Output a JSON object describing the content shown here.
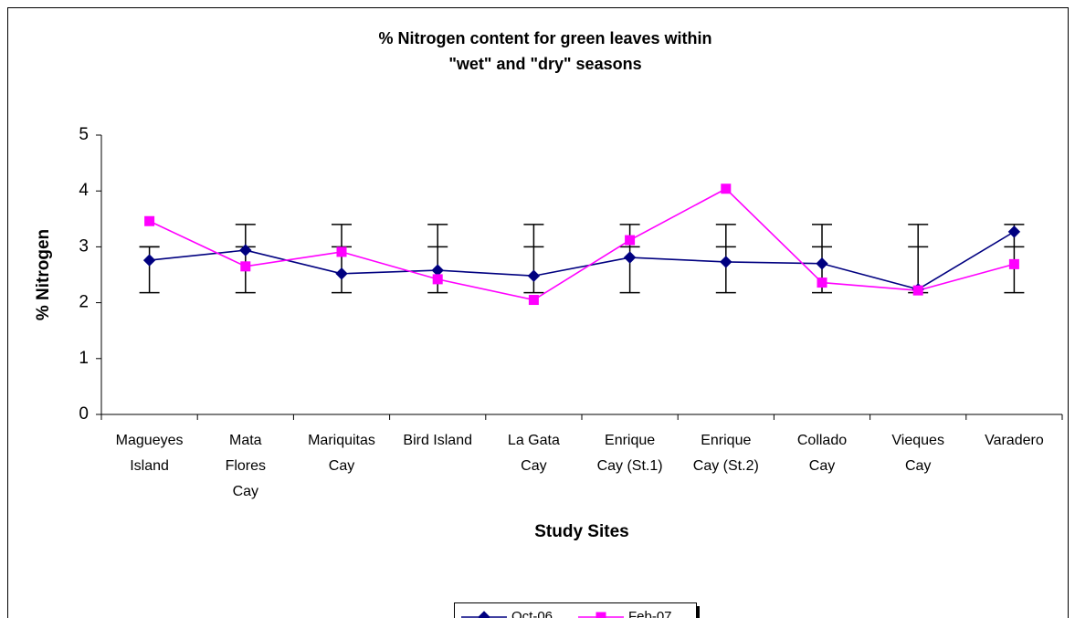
{
  "chart_data": {
    "type": "line",
    "title": [
      "% Nitrogen content for green leaves within",
      "\"wet\" and \"dry\" seasons"
    ],
    "y_label": "% Nitrogen",
    "x_label": "Study Sites",
    "categories": [
      [
        "Magueyes",
        "Island"
      ],
      [
        "Mata",
        "Flores",
        "Cay"
      ],
      [
        "Mariquitas",
        "Cay"
      ],
      [
        "Bird Island"
      ],
      [
        "La Gata",
        "Cay"
      ],
      [
        "Enrique",
        "Cay (St.1)"
      ],
      [
        "Enrique",
        "Cay (St.2)"
      ],
      [
        "Collado",
        "Cay"
      ],
      [
        "Vieques",
        "Cay"
      ],
      [
        "Varadero"
      ]
    ],
    "series": [
      {
        "name": "Oct-06",
        "color": "#000080",
        "marker": "diamond",
        "values": [
          2.76,
          2.94,
          2.52,
          2.58,
          2.48,
          2.81,
          2.73,
          2.7,
          2.24,
          3.27
        ]
      },
      {
        "name": "Feb-07",
        "color": "#ff00ff",
        "marker": "square",
        "values": [
          3.46,
          2.65,
          2.91,
          2.42,
          2.05,
          3.12,
          4.04,
          2.36,
          2.22,
          2.69
        ]
      }
    ],
    "error_bars": {
      "low": [
        2.18,
        2.18,
        2.18,
        2.18,
        2.18,
        2.18,
        2.18,
        2.18,
        2.18,
        2.18
      ],
      "mid": [
        3,
        3,
        3,
        3,
        3,
        3,
        3,
        3,
        3,
        3
      ],
      "high": [
        3,
        3.4,
        3.4,
        3.4,
        3.4,
        3.4,
        3.4,
        3.4,
        3.4,
        3.4
      ]
    },
    "ylim": [
      0,
      5
    ],
    "yticks": [
      0,
      1,
      2,
      3,
      4,
      5
    ],
    "grid": false,
    "legend": "bottom"
  }
}
